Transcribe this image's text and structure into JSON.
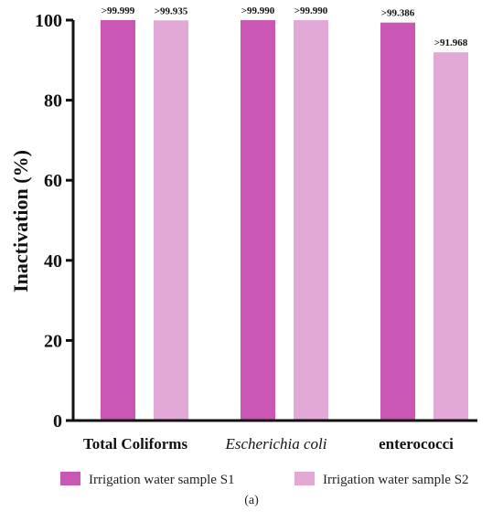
{
  "chart_data": {
    "type": "bar",
    "categories": [
      "Total Coliforms",
      "Escherichia coli",
      "enterococci"
    ],
    "category_italic": [
      false,
      true,
      false
    ],
    "series": [
      {
        "name": "Irrigation water sample S1",
        "color": "#c957b3",
        "values": [
          99.999,
          99.99,
          99.386
        ],
        "labels": [
          ">99.999",
          ">99.990",
          ">99.386"
        ]
      },
      {
        "name": "Irrigation water sample S2",
        "color": "#e2a9d6",
        "values": [
          99.935,
          99.99,
          91.968
        ],
        "labels": [
          ">99.935",
          ">99.990",
          ">91.968"
        ]
      }
    ],
    "ylabel": "Inactivation (%)",
    "ylim": [
      0,
      100
    ],
    "yticks": [
      0,
      20,
      40,
      60,
      80,
      100
    ],
    "legend_position": "bottom",
    "caption": "(a)",
    "grid": false
  }
}
